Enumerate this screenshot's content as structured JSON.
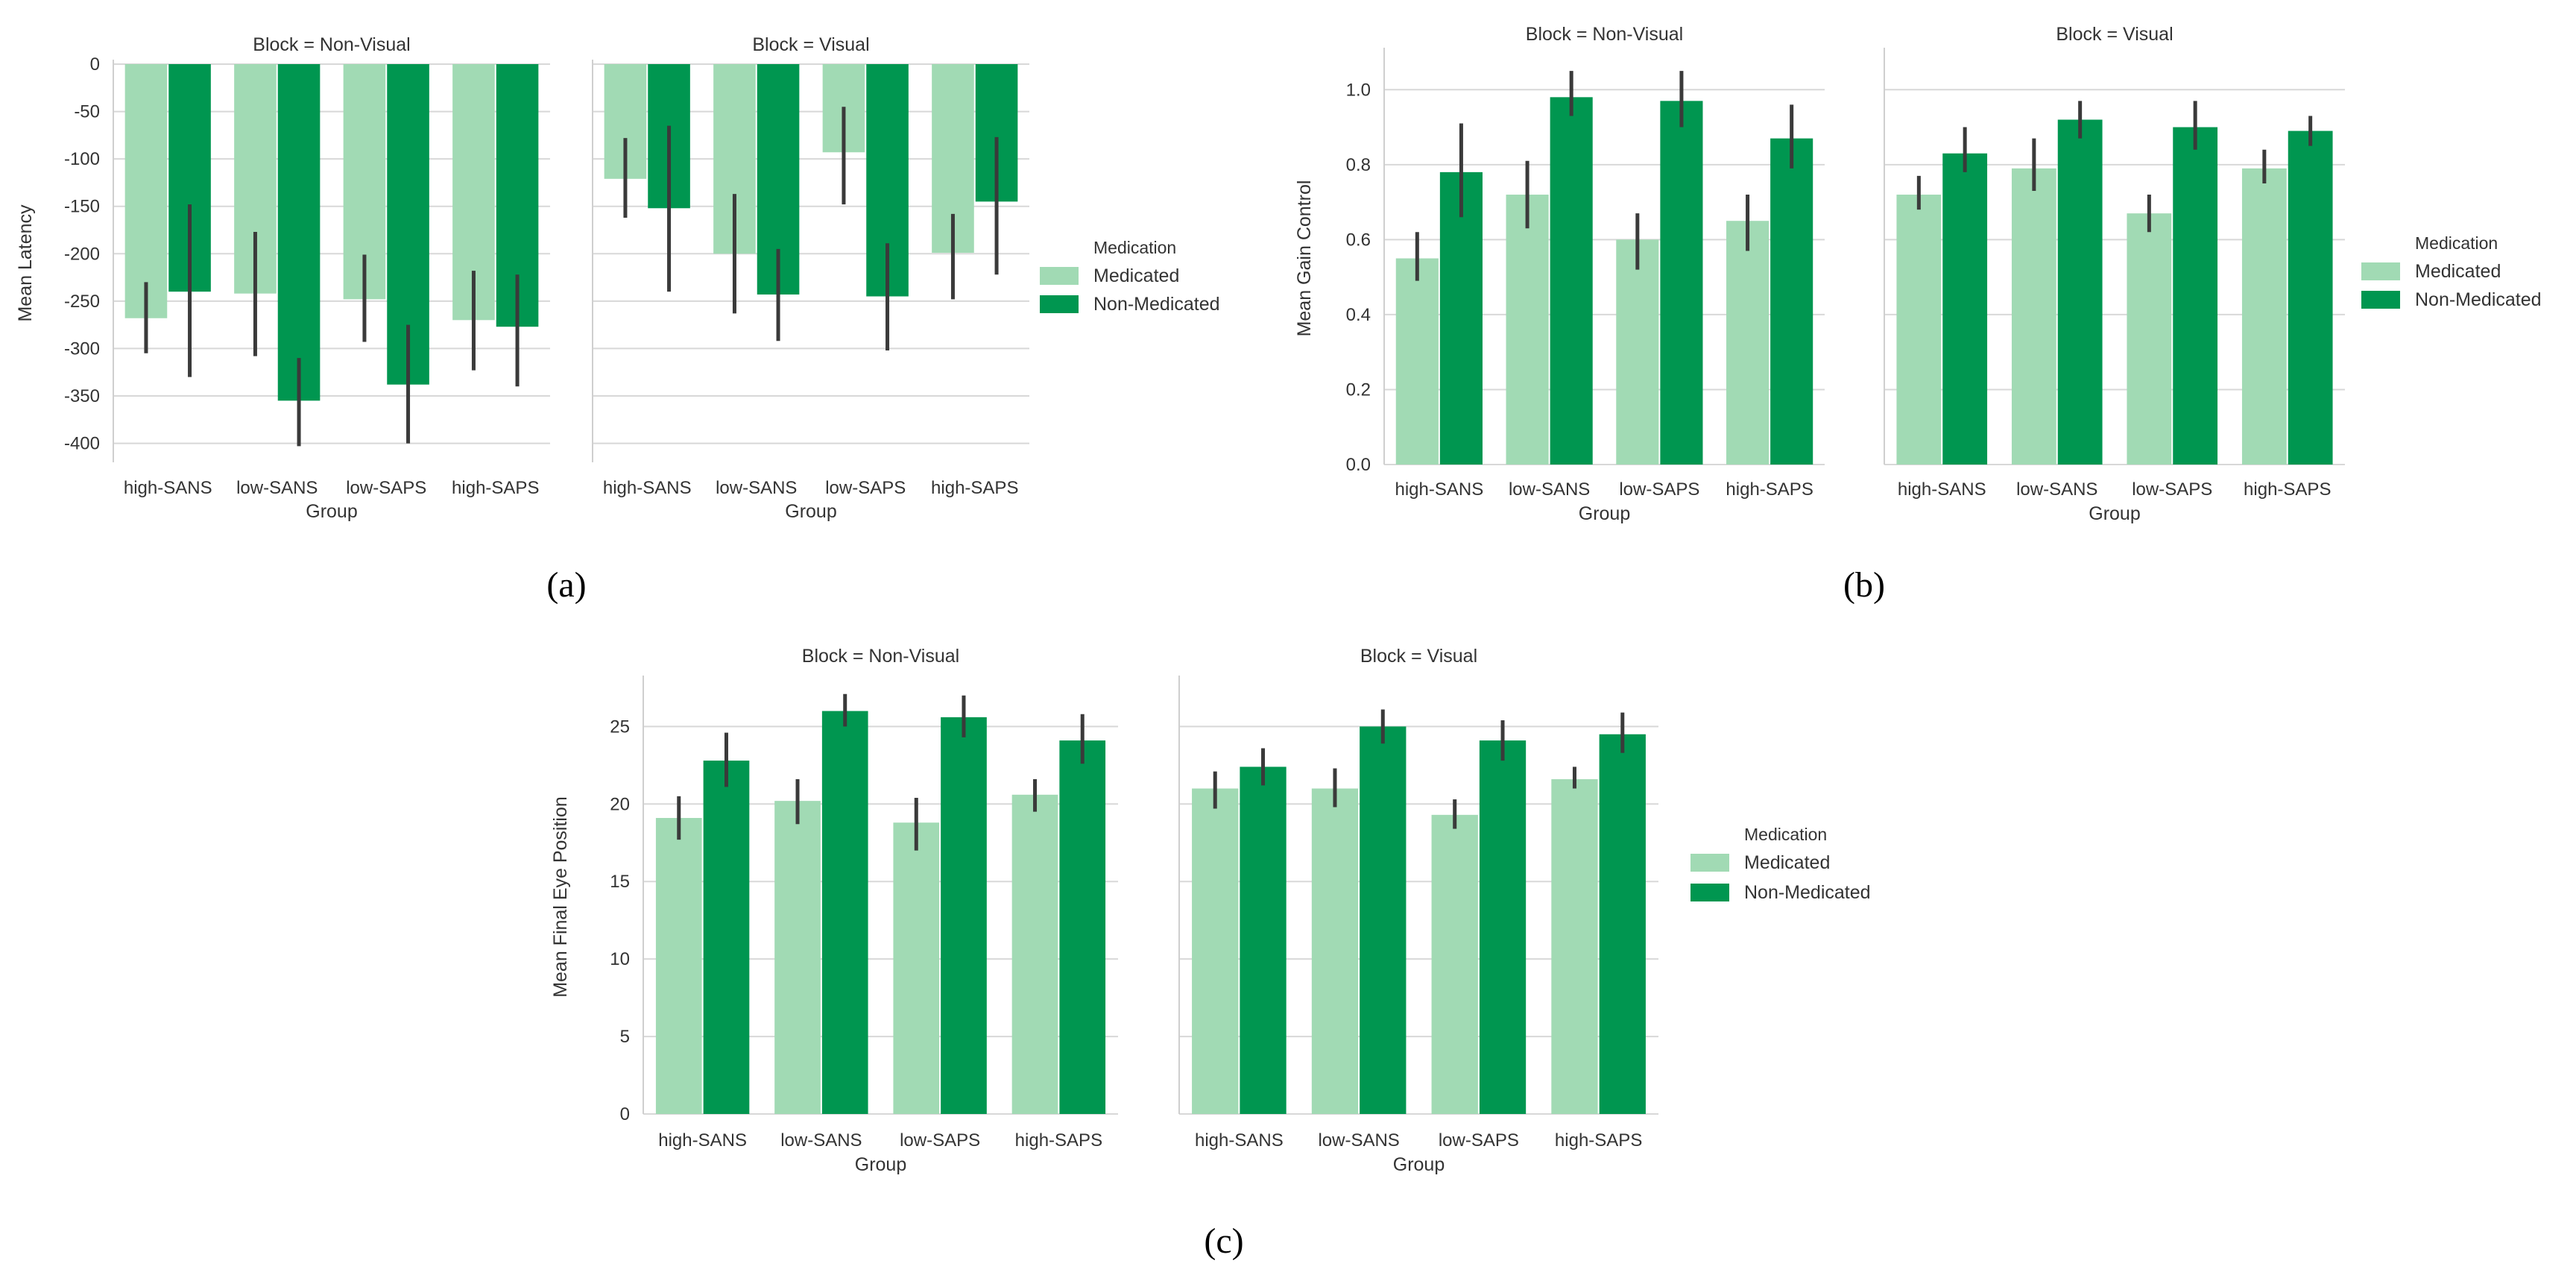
{
  "colors": {
    "medicated": "#a1dab4",
    "non_medicated": "#009650",
    "error_bar": "#3a3a3a",
    "grid": "#d8d8d8",
    "axis": "#cfcfcf"
  },
  "panels": [
    {
      "tag": "(a)"
    },
    {
      "tag": "(b)"
    },
    {
      "tag": "(c)"
    }
  ],
  "chart_data": [
    {
      "type": "bar",
      "panel": "(a)",
      "ylabel": "Mean Latency",
      "xlabel": "Group",
      "ylim": [
        -420,
        0
      ],
      "yticks": [
        0,
        -50,
        -100,
        -150,
        -200,
        -250,
        -300,
        -350,
        -400
      ],
      "ytick_labels": [
        "0",
        "-50",
        "-100",
        "-150",
        "-200",
        "-250",
        "-300",
        "-350",
        "-400"
      ],
      "grid": true,
      "legend": {
        "title": "Medication",
        "entries": [
          "Medicated",
          "Non-Medicated"
        ],
        "placement": "right"
      },
      "categories": [
        "high-SANS",
        "low-SANS",
        "low-SAPS",
        "high-SAPS"
      ],
      "facets": [
        {
          "title": "Block = Non-Visual",
          "series": [
            {
              "name": "Medicated",
              "values": [
                -268,
                -242,
                -248,
                -270
              ],
              "ci_low": [
                -305,
                -308,
                -293,
                -323
              ],
              "ci_high": [
                -230,
                -177,
                -201,
                -218
              ]
            },
            {
              "name": "Non-Medicated",
              "values": [
                -240,
                -355,
                -338,
                -277
              ],
              "ci_low": [
                -330,
                -403,
                -400,
                -340
              ],
              "ci_high": [
                -148,
                -310,
                -275,
                -222
              ]
            }
          ]
        },
        {
          "title": "Block = Visual",
          "series": [
            {
              "name": "Medicated",
              "values": [
                -121,
                -200,
                -93,
                -199
              ],
              "ci_low": [
                -162,
                -263,
                -148,
                -248
              ],
              "ci_high": [
                -78,
                -137,
                -45,
                -158
              ]
            },
            {
              "name": "Non-Medicated",
              "values": [
                -152,
                -243,
                -245,
                -145
              ],
              "ci_low": [
                -240,
                -292,
                -302,
                -222
              ],
              "ci_high": [
                -65,
                -195,
                -189,
                -77
              ]
            }
          ]
        }
      ]
    },
    {
      "type": "bar",
      "panel": "(b)",
      "ylabel": "Mean Gain Control",
      "xlabel": "Group",
      "ylim": [
        0,
        1.1
      ],
      "yticks": [
        0,
        0.2,
        0.4,
        0.6,
        0.8,
        1.0
      ],
      "ytick_labels": [
        "0.0",
        "0.2",
        "0.4",
        "0.6",
        "0.8",
        "1.0"
      ],
      "grid": true,
      "legend": {
        "title": "Medication",
        "entries": [
          "Medicated",
          "Non-Medicated"
        ],
        "placement": "right"
      },
      "categories": [
        "high-SANS",
        "low-SANS",
        "low-SAPS",
        "high-SAPS"
      ],
      "facets": [
        {
          "title": "Block = Non-Visual",
          "series": [
            {
              "name": "Medicated",
              "values": [
                0.55,
                0.72,
                0.6,
                0.65
              ],
              "ci_low": [
                0.49,
                0.63,
                0.52,
                0.57
              ],
              "ci_high": [
                0.62,
                0.81,
                0.67,
                0.72
              ]
            },
            {
              "name": "Non-Medicated",
              "values": [
                0.78,
                0.98,
                0.97,
                0.87
              ],
              "ci_low": [
                0.66,
                0.93,
                0.9,
                0.79
              ],
              "ci_high": [
                0.91,
                1.05,
                1.05,
                0.96
              ]
            }
          ]
        },
        {
          "title": "Block = Visual",
          "series": [
            {
              "name": "Medicated",
              "values": [
                0.72,
                0.79,
                0.67,
                0.79
              ],
              "ci_low": [
                0.68,
                0.73,
                0.62,
                0.75
              ],
              "ci_high": [
                0.77,
                0.87,
                0.72,
                0.84
              ]
            },
            {
              "name": "Non-Medicated",
              "values": [
                0.83,
                0.92,
                0.9,
                0.89
              ],
              "ci_low": [
                0.78,
                0.87,
                0.84,
                0.85
              ],
              "ci_high": [
                0.9,
                0.97,
                0.97,
                0.93
              ]
            }
          ]
        }
      ]
    },
    {
      "type": "bar",
      "panel": "(c)",
      "ylabel": "Mean Final Eye Position",
      "xlabel": "Group",
      "ylim": [
        0,
        28
      ],
      "yticks": [
        0,
        5,
        10,
        15,
        20,
        25
      ],
      "ytick_labels": [
        "0",
        "5",
        "10",
        "15",
        "20",
        "25"
      ],
      "grid": true,
      "legend": {
        "title": "Medication",
        "entries": [
          "Medicated",
          "Non-Medicated"
        ],
        "placement": "right"
      },
      "categories": [
        "high-SANS",
        "low-SANS",
        "low-SAPS",
        "high-SAPS"
      ],
      "facets": [
        {
          "title": "Block = Non-Visual",
          "series": [
            {
              "name": "Medicated",
              "values": [
                19.1,
                20.2,
                18.8,
                20.6
              ],
              "ci_low": [
                17.7,
                18.7,
                17.0,
                19.5
              ],
              "ci_high": [
                20.5,
                21.6,
                20.4,
                21.6
              ]
            },
            {
              "name": "Non-Medicated",
              "values": [
                22.8,
                26.0,
                25.6,
                24.1
              ],
              "ci_low": [
                21.1,
                25.0,
                24.3,
                22.6
              ],
              "ci_high": [
                24.6,
                27.1,
                27.0,
                25.8
              ]
            }
          ]
        },
        {
          "title": "Block = Visual",
          "series": [
            {
              "name": "Medicated",
              "values": [
                21.0,
                21.0,
                19.3,
                21.6
              ],
              "ci_low": [
                19.7,
                19.8,
                18.4,
                21.0
              ],
              "ci_high": [
                22.1,
                22.3,
                20.3,
                22.4
              ]
            },
            {
              "name": "Non-Medicated",
              "values": [
                22.4,
                25.0,
                24.1,
                24.5
              ],
              "ci_low": [
                21.2,
                23.9,
                22.8,
                23.3
              ],
              "ci_high": [
                23.6,
                26.1,
                25.4,
                25.9
              ]
            }
          ]
        }
      ]
    }
  ]
}
